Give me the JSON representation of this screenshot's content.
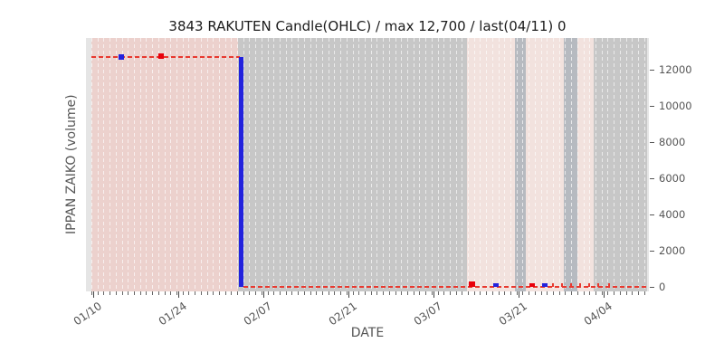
{
  "chart_data": {
    "type": "candlestick",
    "title": "3843 RAKUTEN Candle(OHLC) / max 12,700 / last(04/11) 0",
    "xlabel": "DATE",
    "ylabel": "IPPAN ZAIKO (volume)",
    "max_value": 12700,
    "last_date": "04/11",
    "last_value": 0,
    "ylim": [
      -250,
      13730
    ],
    "yticks": [
      0,
      2000,
      4000,
      6000,
      8000,
      10000,
      12000
    ],
    "xticks": [
      {
        "d": 0,
        "label": "01/10"
      },
      {
        "d": 14,
        "label": "01/24"
      },
      {
        "d": 28,
        "label": "02/07"
      },
      {
        "d": 42,
        "label": "02/21"
      },
      {
        "d": 56,
        "label": "03/07"
      },
      {
        "d": 70,
        "label": "03/21"
      },
      {
        "d": 84,
        "label": "04/04"
      }
    ],
    "x_axis": {
      "unit": "days-since-01/10",
      "dmin": -0.3,
      "dmax": 91.2,
      "minor_ticks_daily": true
    },
    "grid": {
      "vertical_daily_dashes": true,
      "color": "rgba(255,255,255,0.65)",
      "horizontal": false
    },
    "legend": null,
    "colors": {
      "up_candle": "#e8000b",
      "down_candle": "#2222dd",
      "close_line": "#e8392f",
      "plot_bg": "#e5e5e5",
      "band_pink": "#ecd1cd",
      "band_light_pink": "#f2e2de",
      "band_gray": "#c7c7c7",
      "band_dark_gray": "#b6bac0"
    },
    "bands": [
      {
        "from": -0.3,
        "to": 23.9,
        "color": "#ecd1cd"
      },
      {
        "from": 23.9,
        "to": 61.6,
        "color": "#c7c7c7"
      },
      {
        "from": 61.6,
        "to": 69.4,
        "color": "#f2e2de"
      },
      {
        "from": 69.4,
        "to": 71.2,
        "color": "#b6bac0"
      },
      {
        "from": 71.2,
        "to": 77.5,
        "color": "#f2e2de"
      },
      {
        "from": 77.5,
        "to": 79.7,
        "color": "#b6bac0"
      },
      {
        "from": 79.7,
        "to": 82.4,
        "color": "#f2e2de"
      },
      {
        "from": 82.4,
        "to": 91.2,
        "color": "#c7c7c7"
      }
    ],
    "close_line_segments": [
      {
        "d0": -0.3,
        "d1": 24.1,
        "y": 12700
      },
      {
        "d0": 24.8,
        "d1": 91.3,
        "y": 0
      }
    ],
    "candles": [
      {
        "d": 4.6,
        "lo": 12520,
        "hi": 12820,
        "w": 6,
        "color": "#2222dd"
      },
      {
        "d": 11.2,
        "lo": 12580,
        "hi": 12880,
        "w": 6,
        "color": "#e8000b"
      },
      {
        "d": 24.4,
        "lo": 0,
        "hi": 12700,
        "w": 5,
        "color": "#2222dd"
      },
      {
        "d": 62.3,
        "lo": 0,
        "hi": 300,
        "w": 7,
        "color": "#e8000b"
      },
      {
        "d": 66.3,
        "lo": 0,
        "hi": 200,
        "w": 6,
        "color": "#2222dd"
      },
      {
        "d": 72.3,
        "lo": 0,
        "hi": 200,
        "w": 6,
        "color": "#e8000b"
      },
      {
        "d": 74.4,
        "lo": 0,
        "hi": 200,
        "w": 6,
        "color": "#2222dd"
      },
      {
        "d": 75.7,
        "lo": 0,
        "hi": 220,
        "w": 2,
        "color": "#e8392f"
      },
      {
        "d": 77.2,
        "lo": 0,
        "hi": 220,
        "w": 2,
        "color": "#e8392f"
      },
      {
        "d": 78.7,
        "lo": 0,
        "hi": 220,
        "w": 2,
        "color": "#e8392f"
      },
      {
        "d": 80.2,
        "lo": 0,
        "hi": 220,
        "w": 2,
        "color": "#e8392f"
      },
      {
        "d": 81.7,
        "lo": 0,
        "hi": 220,
        "w": 2,
        "color": "#e8392f"
      },
      {
        "d": 83.2,
        "lo": 0,
        "hi": 220,
        "w": 2,
        "color": "#e8392f"
      },
      {
        "d": 85.0,
        "lo": 0,
        "hi": 220,
        "w": 2,
        "color": "#e8392f"
      }
    ]
  }
}
